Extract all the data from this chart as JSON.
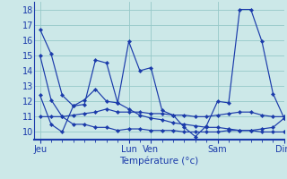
{
  "background_color": "#cce8e8",
  "grid_color": "#96c8c8",
  "line_color": "#1a3aaa",
  "marker_color": "#1a3aaa",
  "xlabel": "Température (°c)",
  "xlabel_color": "#1a3aaa",
  "tick_color": "#1a3aaa",
  "ylim": [
    9.5,
    18.5
  ],
  "yticks": [
    10,
    11,
    12,
    13,
    14,
    15,
    16,
    17,
    18
  ],
  "x_day_labels": [
    "Jeu",
    "Lun",
    "Ven",
    "Sam",
    "Dim"
  ],
  "x_day_positions": [
    0,
    8,
    10,
    16,
    22
  ],
  "n_points": 23,
  "series": [
    [
      16.7,
      15.1,
      12.4,
      11.7,
      11.8,
      14.7,
      14.5,
      11.9,
      11.5,
      11.1,
      10.9,
      10.8,
      10.6,
      10.5,
      10.4,
      10.3,
      10.3,
      10.2,
      10.1,
      10.1,
      10.2,
      10.3,
      10.9
    ],
    [
      12.4,
      10.5,
      10.0,
      11.7,
      12.1,
      12.8,
      12.0,
      11.9,
      15.9,
      14.0,
      14.2,
      11.4,
      11.1,
      10.3,
      9.7,
      10.4,
      12.0,
      11.9,
      18.0,
      18.0,
      15.9,
      12.5,
      10.9
    ],
    [
      11.0,
      11.0,
      11.0,
      11.1,
      11.2,
      11.3,
      11.5,
      11.3,
      11.3,
      11.3,
      11.2,
      11.2,
      11.1,
      11.1,
      11.0,
      11.0,
      11.1,
      11.2,
      11.3,
      11.3,
      11.1,
      11.0,
      11.0
    ],
    [
      15.0,
      12.1,
      11.0,
      10.5,
      10.5,
      10.3,
      10.3,
      10.1,
      10.2,
      10.2,
      10.1,
      10.1,
      10.1,
      10.0,
      10.0,
      10.0,
      10.0,
      10.1,
      10.1,
      10.1,
      10.0,
      10.0,
      10.0
    ]
  ]
}
